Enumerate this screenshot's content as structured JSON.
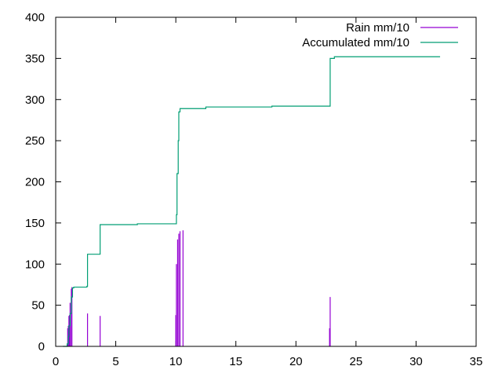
{
  "chart_data": {
    "type": "line",
    "title": "",
    "xlabel": "",
    "ylabel": "",
    "xlim": [
      0,
      35
    ],
    "ylim": [
      0,
      400
    ],
    "xticks": [
      0,
      5,
      10,
      15,
      20,
      25,
      30,
      35
    ],
    "yticks": [
      0,
      50,
      100,
      150,
      200,
      250,
      300,
      350,
      400
    ],
    "grid": false,
    "legend_position": "top-right",
    "series": [
      {
        "name": "Rain mm/10",
        "style": "impulses",
        "color": "#9400d3",
        "points": [
          [
            1.0,
            22
          ],
          [
            1.05,
            25
          ],
          [
            1.1,
            37
          ],
          [
            1.15,
            38
          ],
          [
            1.2,
            53
          ],
          [
            1.3,
            70
          ],
          [
            1.35,
            72
          ],
          [
            2.65,
            40
          ],
          [
            3.7,
            37
          ],
          [
            10.0,
            38
          ],
          [
            10.05,
            100
          ],
          [
            10.15,
            130
          ],
          [
            10.25,
            137
          ],
          [
            10.35,
            140
          ],
          [
            10.6,
            141
          ],
          [
            22.8,
            22
          ],
          [
            22.85,
            60
          ]
        ]
      },
      {
        "name": "Accumulated mm/10",
        "style": "line",
        "color": "#009e73",
        "points": [
          [
            0.6,
            0
          ],
          [
            0.9,
            0
          ],
          [
            0.95,
            3
          ],
          [
            1.05,
            12
          ],
          [
            1.1,
            25
          ],
          [
            1.2,
            40
          ],
          [
            1.3,
            60
          ],
          [
            1.4,
            71
          ],
          [
            1.5,
            72
          ],
          [
            2.6,
            73
          ],
          [
            2.65,
            112
          ],
          [
            3.65,
            112
          ],
          [
            3.7,
            148
          ],
          [
            6.8,
            149
          ],
          [
            10.0,
            149
          ],
          [
            10.05,
            160
          ],
          [
            10.1,
            210
          ],
          [
            10.2,
            250
          ],
          [
            10.25,
            285
          ],
          [
            10.35,
            289
          ],
          [
            12.5,
            291
          ],
          [
            18.0,
            292
          ],
          [
            22.8,
            292
          ],
          [
            22.85,
            350
          ],
          [
            23.2,
            352
          ],
          [
            32.0,
            352
          ]
        ]
      }
    ]
  }
}
